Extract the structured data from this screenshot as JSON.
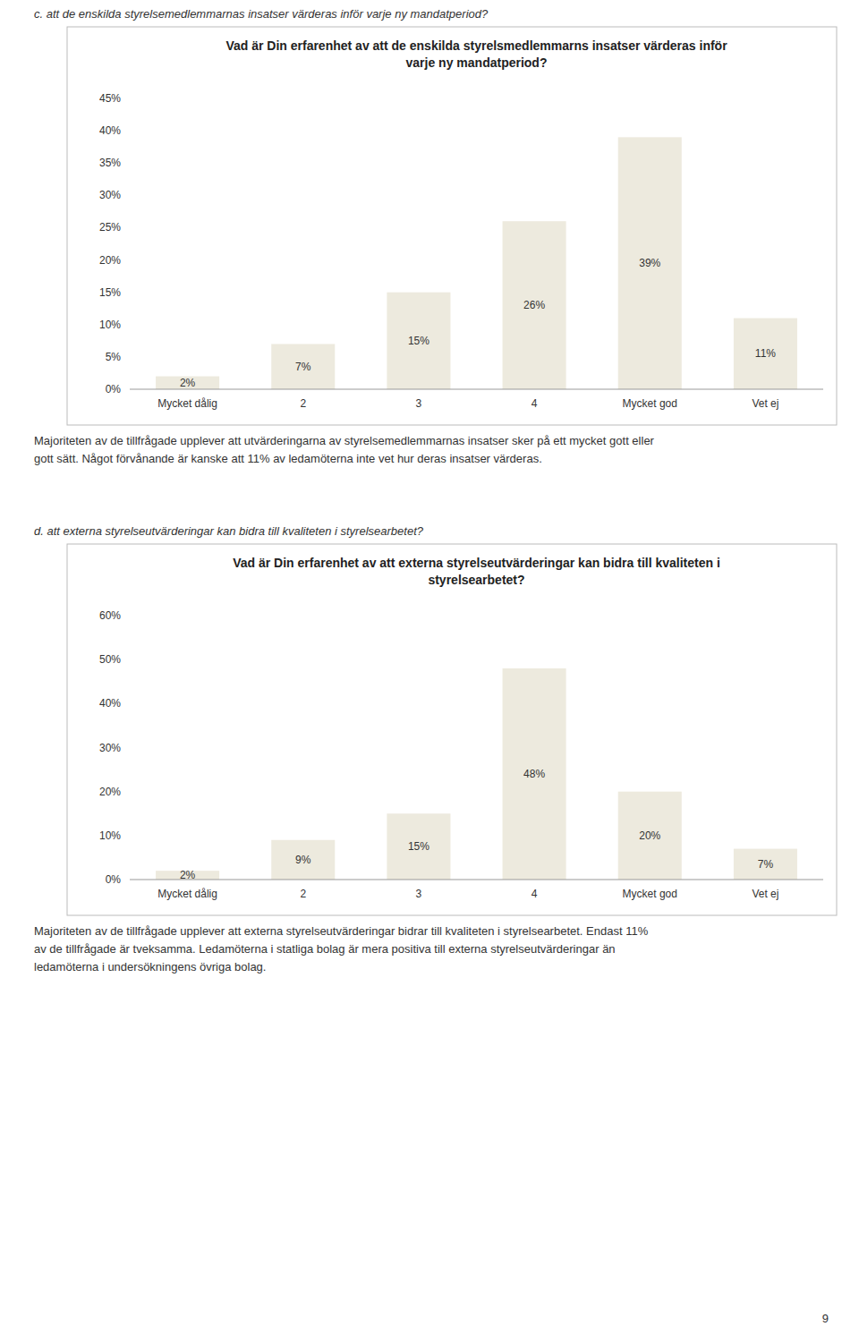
{
  "chart_data": [
    {
      "type": "bar",
      "title": "Vad är Din erfarenhet av att de enskilda styrelsmedlemmarns insatser värderas inför\nvarje ny mandatperiod?",
      "subtitle": "c.   att de enskilda styrelsemedlemmarnas insatser värderas inför varje ny mandatperiod?",
      "annotations": [
        "Majoriteten av de tillfrågade upplever att utvärderingarna av styrelsemedlemmarnas insatser sker på ett mycket gott eller",
        "gott sätt. Något förvånande är kanske att 11% av ledamöterna inte vet hur deras insatser värderas."
      ],
      "categories": [
        "Mycket dålig",
        "2",
        "3",
        "4",
        "Mycket god",
        "Vet ej"
      ],
      "values": [
        2,
        7,
        15,
        26,
        39,
        11
      ],
      "value_labels": [
        "2%",
        "7%",
        "15%",
        "26%",
        "39%",
        "11%"
      ],
      "data_labels": true,
      "color": "#edeade",
      "ylim": [
        0,
        45
      ],
      "yticks": [
        {
          "value": 0,
          "label": "0%"
        },
        {
          "value": 5,
          "label": "5%"
        },
        {
          "value": 10,
          "label": "10%"
        },
        {
          "value": 15,
          "label": "15%"
        },
        {
          "value": 20,
          "label": "20%"
        },
        {
          "value": 25,
          "label": "25%"
        },
        {
          "value": 30,
          "label": "30%"
        },
        {
          "value": 35,
          "label": "35%"
        },
        {
          "value": 40,
          "label": "40%"
        },
        {
          "value": 45,
          "label": "45%"
        }
      ],
      "grid": false
    },
    {
      "type": "bar",
      "title": "Vad är Din erfarenhet av att externa styrelseutvärderingar kan bidra till kvaliteten i\nstyrelsearbetet?",
      "subtitle": "d.   att externa styrelseutvärderingar kan bidra till kvaliteten i styrelsearbetet?",
      "annotations": [
        "Majoriteten av de tillfrågade upplever att externa styrelseutvärderingar bidrar till kvaliteten i styrelsearbetet. Endast 11%",
        "av de tillfrågade är tveksamma. Ledamöterna i statliga bolag är mera positiva till externa styrelseutvärderingar än",
        "ledamöterna i undersökningens övriga bolag."
      ],
      "categories": [
        "Mycket dålig",
        "2",
        "3",
        "4",
        "Mycket god",
        "Vet ej"
      ],
      "values": [
        2,
        9,
        15,
        48,
        20,
        7
      ],
      "value_labels": [
        "2%",
        "9%",
        "15%",
        "48%",
        "20%",
        "7%"
      ],
      "data_labels": true,
      "color": "#edeade",
      "ylim": [
        0,
        60
      ],
      "yticks": [
        {
          "value": 0,
          "label": "0%"
        },
        {
          "value": 10,
          "label": "10%"
        },
        {
          "value": 20,
          "label": "20%"
        },
        {
          "value": 30,
          "label": "30%"
        },
        {
          "value": 40,
          "label": "40%"
        },
        {
          "value": 50,
          "label": "50%"
        },
        {
          "value": 60,
          "label": "60%"
        }
      ],
      "grid": false
    }
  ],
  "annotations": [
    "9"
  ]
}
